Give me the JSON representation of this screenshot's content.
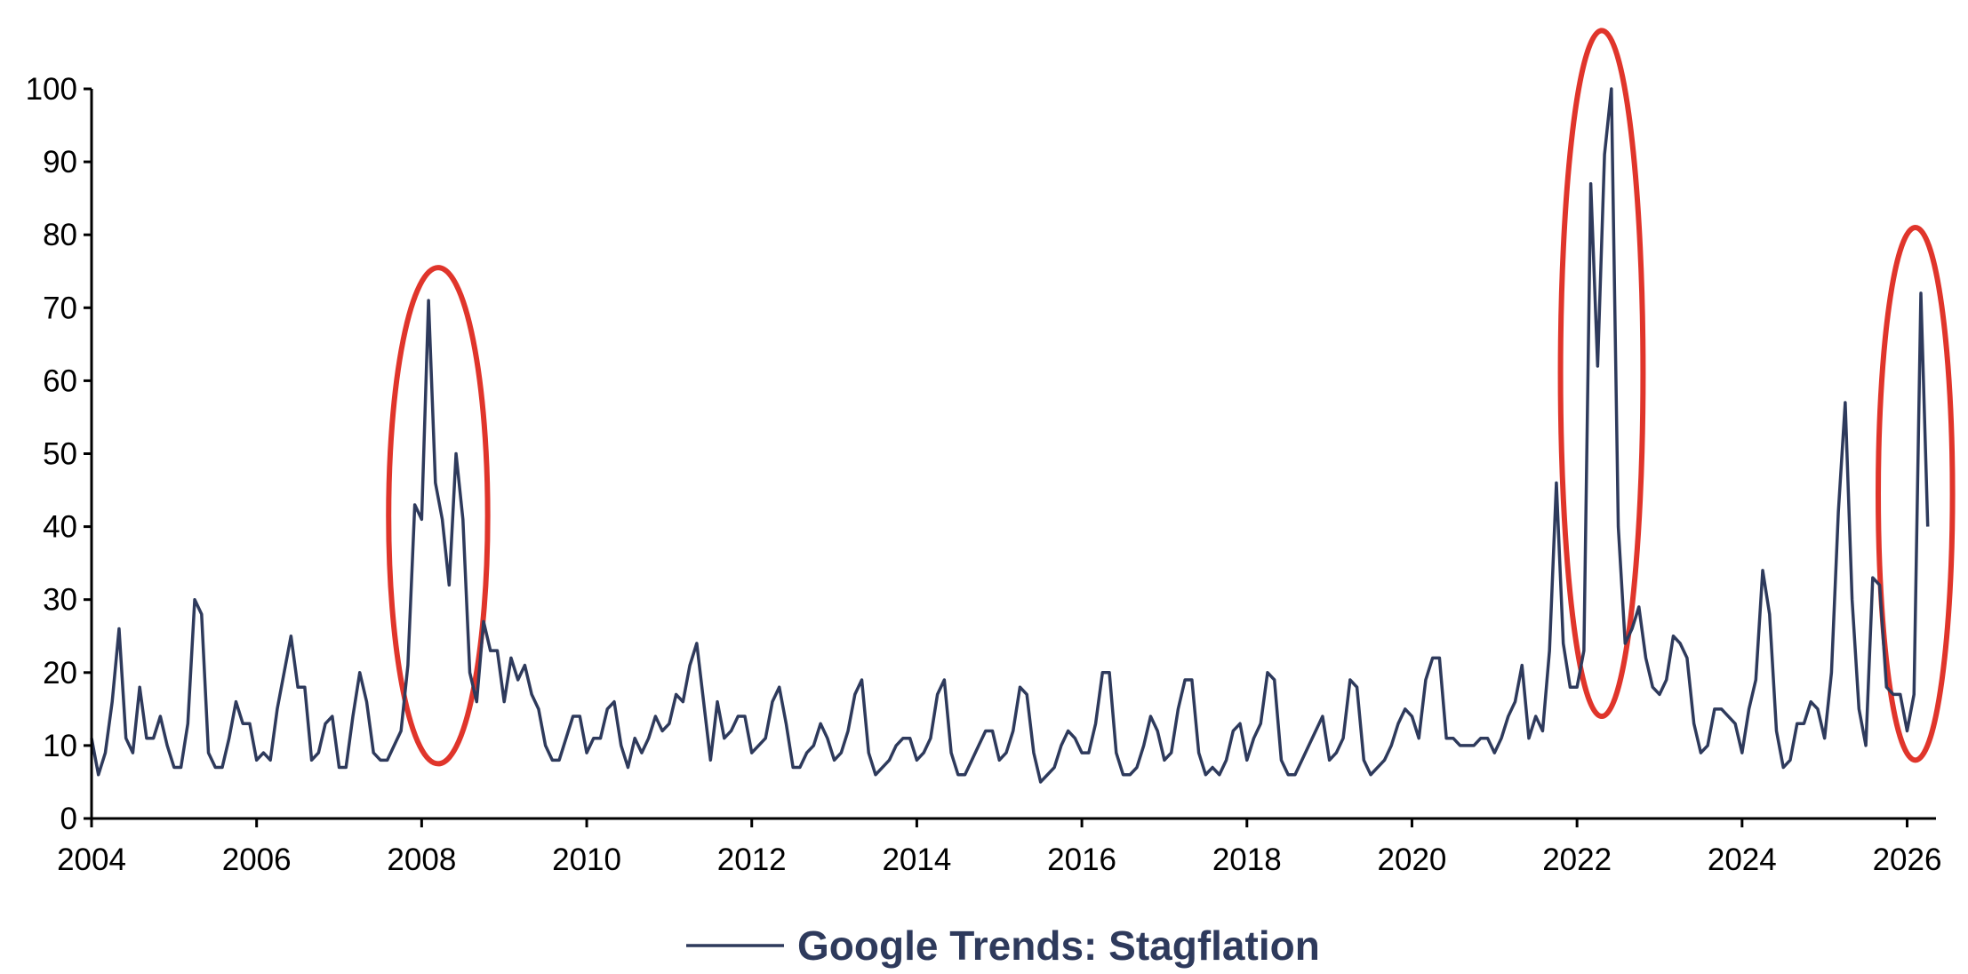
{
  "chart_data": {
    "type": "line",
    "title": "",
    "xlabel": "",
    "ylabel": "",
    "xlim": [
      2004,
      2026.35
    ],
    "ylim": [
      0,
      100
    ],
    "x_ticks": [
      "2004",
      "2006",
      "2008",
      "2010",
      "2012",
      "2014",
      "2016",
      "2018",
      "2020",
      "2022",
      "2024",
      "2026"
    ],
    "y_ticks": [
      "0",
      "10",
      "20",
      "30",
      "40",
      "50",
      "60",
      "70",
      "80",
      "90",
      "100"
    ],
    "grid": false,
    "legend_position": "bottom-center",
    "colors": {
      "line": "#2e3a5c",
      "highlight": "#e0352b"
    },
    "series": [
      {
        "name": "Google Trends: Stagflation",
        "start": "2004-01",
        "frequency": "monthly",
        "values": [
          11,
          6,
          9,
          16,
          26,
          11,
          9,
          18,
          11,
          11,
          14,
          10,
          7,
          7,
          13,
          30,
          28,
          9,
          7,
          7,
          11,
          16,
          13,
          13,
          8,
          9,
          8,
          15,
          20,
          25,
          18,
          18,
          8,
          9,
          13,
          14,
          7,
          7,
          14,
          20,
          16,
          9,
          8,
          8,
          10,
          12,
          21,
          43,
          41,
          71,
          46,
          41,
          32,
          50,
          41,
          20,
          16,
          27,
          23,
          23,
          16,
          22,
          19,
          21,
          17,
          15,
          10,
          8,
          8,
          11,
          14,
          14,
          9,
          11,
          11,
          15,
          16,
          10,
          7,
          11,
          9,
          11,
          14,
          12,
          13,
          17,
          16,
          21,
          24,
          16,
          8,
          16,
          11,
          12,
          14,
          14,
          9,
          10,
          11,
          16,
          18,
          13,
          7,
          7,
          9,
          10,
          13,
          11,
          8,
          9,
          12,
          17,
          19,
          9,
          6,
          7,
          8,
          10,
          11,
          11,
          8,
          9,
          11,
          17,
          19,
          9,
          6,
          6,
          8,
          10,
          12,
          12,
          8,
          9,
          12,
          18,
          17,
          9,
          5,
          6,
          7,
          10,
          12,
          11,
          9,
          9,
          13,
          20,
          20,
          9,
          6,
          6,
          7,
          10,
          14,
          12,
          8,
          9,
          15,
          19,
          19,
          9,
          6,
          7,
          6,
          8,
          12,
          13,
          8,
          11,
          13,
          20,
          19,
          8,
          6,
          6,
          8,
          10,
          12,
          14,
          8,
          9,
          11,
          19,
          18,
          8,
          6,
          7,
          8,
          10,
          13,
          15,
          14,
          11,
          19,
          22,
          22,
          11,
          11,
          10,
          10,
          10,
          11,
          11,
          9,
          11,
          14,
          16,
          21,
          11,
          14,
          12,
          23,
          46,
          24,
          18,
          18,
          23,
          87,
          62,
          91,
          100,
          40,
          24,
          26,
          29,
          22,
          18,
          17,
          19,
          25,
          24,
          22,
          13,
          9,
          10,
          15,
          15,
          14,
          13,
          9,
          15,
          19,
          34,
          28,
          12,
          7,
          8,
          13,
          13,
          16,
          15,
          11,
          20,
          42,
          57,
          30,
          15,
          10,
          33,
          32,
          18,
          17,
          17,
          12,
          17,
          72,
          40
        ]
      }
    ],
    "highlights": [
      {
        "center_x": 2008.2,
        "center_y": 41.5,
        "x_radius": 0.6,
        "y_radius": 34
      },
      {
        "center_x": 2022.3,
        "center_y": 61,
        "x_radius": 0.5,
        "y_radius": 47
      },
      {
        "center_x": 2026.1,
        "center_y": 44.5,
        "x_radius": 0.45,
        "y_radius": 36.5
      }
    ]
  }
}
